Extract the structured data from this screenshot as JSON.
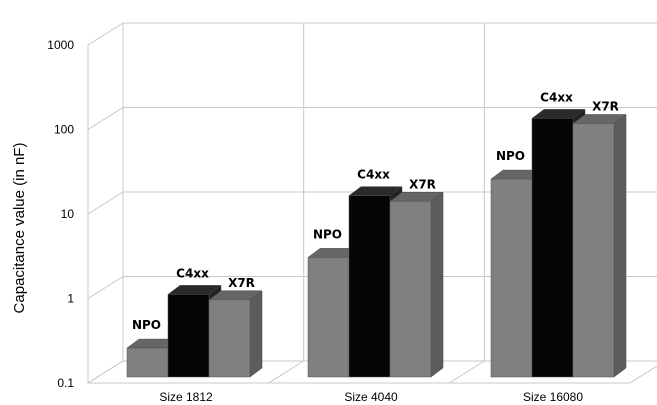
{
  "chart_data": {
    "type": "bar",
    "style": "3d-clustered-column",
    "y_scale": "log",
    "categories": [
      "Size 1812",
      "Size 4040",
      "Size 16080"
    ],
    "series": [
      {
        "name": "NPO",
        "values": [
          0.22,
          2.6,
          22
        ],
        "color": "#808080"
      },
      {
        "name": "C4xx",
        "values": [
          0.95,
          14,
          115
        ],
        "color": "#050505"
      },
      {
        "name": "X7R",
        "values": [
          0.82,
          12,
          100
        ],
        "color": "#808080"
      }
    ],
    "ylabel": "Capacitance value (in nF)",
    "ylim": [
      0.1,
      1000
    ],
    "yticks": [
      "0.1",
      "1",
      "10",
      "100",
      "1000"
    ],
    "grid": true,
    "legend": "none"
  }
}
